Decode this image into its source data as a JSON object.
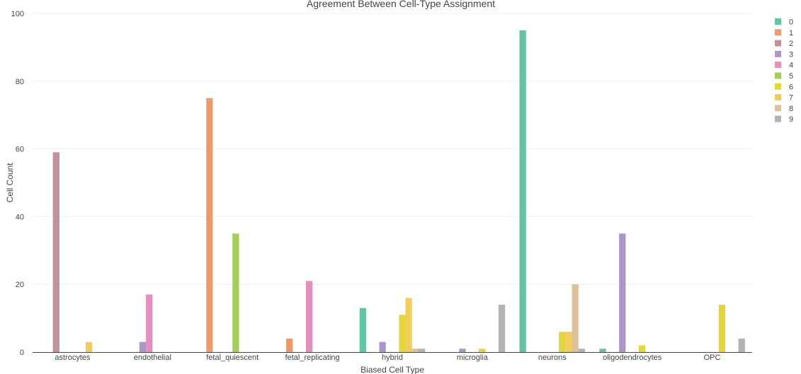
{
  "chart_data": {
    "type": "bar",
    "title": "Agreement Between Cell-Type Assignment",
    "xlabel": "Biased Cell Type",
    "ylabel": "Cell Count",
    "ylim": [
      0,
      100
    ],
    "yticks": [
      "0",
      "20",
      "40",
      "60",
      "80",
      "100"
    ],
    "grid": true,
    "legend_position": "top-right",
    "categories": [
      "astrocytes",
      "endothelial",
      "fetal_quiescent",
      "fetal_replicating",
      "hybrid",
      "microglia",
      "neurons",
      "oligodendrocytes",
      "OPC"
    ],
    "series": [
      {
        "name": "0",
        "color": "#66c2a5",
        "values": [
          0,
          0,
          0,
          0,
          13,
          0,
          95,
          1,
          0
        ]
      },
      {
        "name": "1",
        "color": "#e89c6c",
        "values": [
          0,
          0,
          75,
          4,
          0,
          0,
          0,
          0,
          0
        ]
      },
      {
        "name": "2",
        "color": "#c4919a",
        "values": [
          59,
          0,
          0,
          0,
          0,
          0,
          0,
          0,
          0
        ]
      },
      {
        "name": "3",
        "color": "#ae95c8",
        "values": [
          0,
          3,
          0,
          0,
          3,
          1,
          0,
          35,
          0
        ]
      },
      {
        "name": "4",
        "color": "#e38fc0",
        "values": [
          0,
          17,
          0,
          21,
          0,
          0,
          0,
          0,
          0
        ]
      },
      {
        "name": "5",
        "color": "#a6cc5b",
        "values": [
          0,
          0,
          35,
          0,
          0,
          0,
          0,
          0,
          0
        ]
      },
      {
        "name": "6",
        "color": "#e2d63a",
        "values": [
          0,
          0,
          0,
          0,
          11,
          1,
          6,
          2,
          14
        ]
      },
      {
        "name": "7",
        "color": "#f3cd5b",
        "values": [
          3,
          0,
          0,
          0,
          16,
          0,
          6,
          0,
          0
        ]
      },
      {
        "name": "8",
        "color": "#dbc29a",
        "values": [
          0,
          0,
          0,
          0,
          1,
          0,
          20,
          0,
          0
        ]
      },
      {
        "name": "9",
        "color": "#b3b3b3",
        "values": [
          0,
          0,
          0,
          0,
          1,
          14,
          1,
          0,
          4
        ]
      }
    ]
  },
  "colors": {
    "grid": "#eeeeee",
    "axis": "#444444",
    "text": "#444444"
  }
}
